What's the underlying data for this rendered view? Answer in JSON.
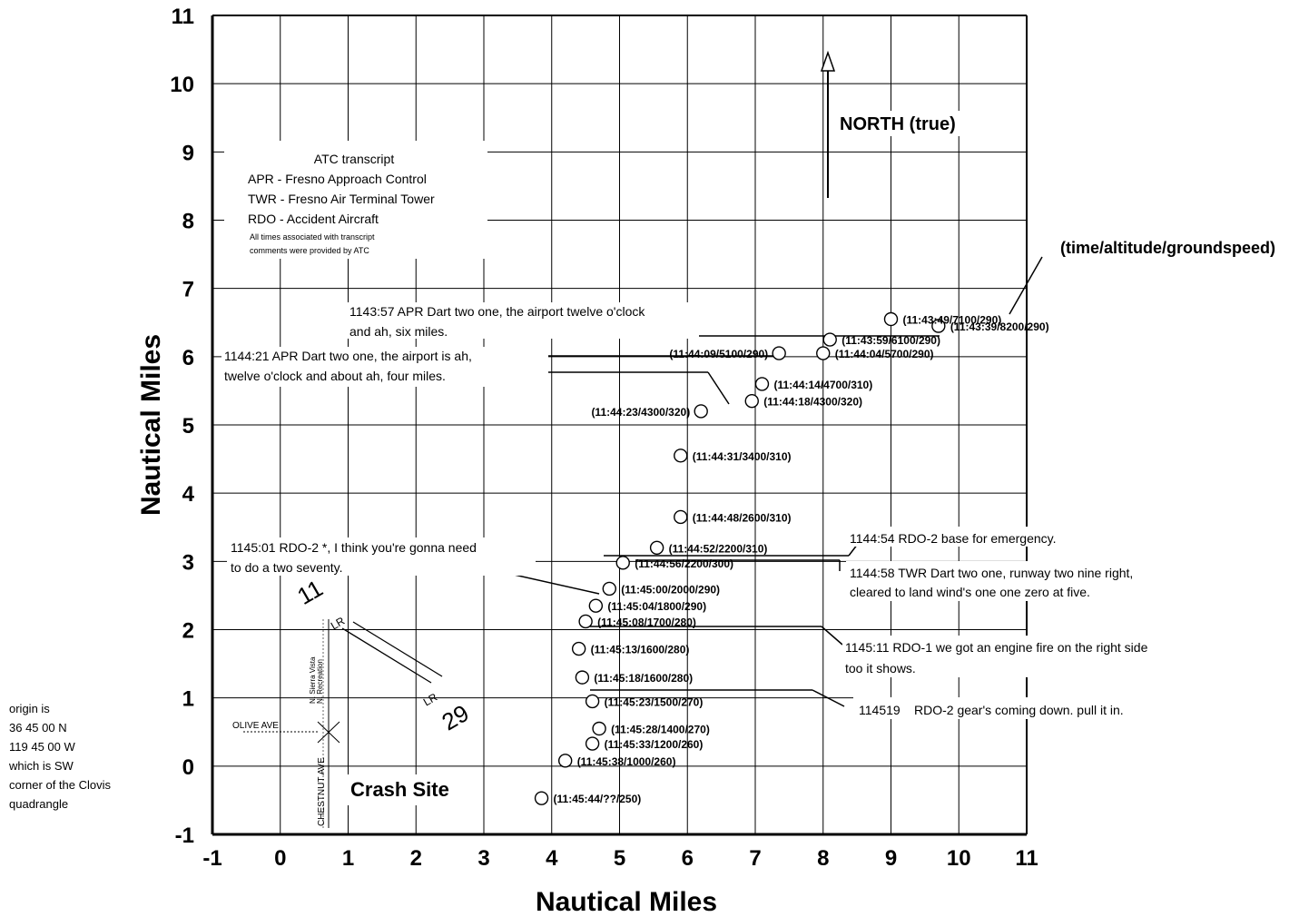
{
  "chart_data": {
    "type": "scatter",
    "title": "",
    "xlabel": "Nautical Miles",
    "ylabel": "Nautical Miles",
    "xlim": [
      -1,
      11
    ],
    "ylim": [
      -1,
      11
    ],
    "x_ticks": [
      "-1",
      "0",
      "1",
      "2",
      "3",
      "4",
      "5",
      "6",
      "7",
      "8",
      "9",
      "10",
      "11"
    ],
    "y_ticks": [
      "-1",
      "0",
      "1",
      "2",
      "3",
      "4",
      "5",
      "6",
      "7",
      "8",
      "9",
      "10",
      "11"
    ],
    "grid": true,
    "series_format": "(time/altitude/groundspeed)",
    "points": [
      {
        "x": 9.7,
        "y": 6.45,
        "label": "(11:43:39/8200/290)"
      },
      {
        "x": 9.0,
        "y": 6.55,
        "label": "(11:43:49/7100/290)"
      },
      {
        "x": 8.1,
        "y": 6.25,
        "label": "(11:43:59/6100/290)"
      },
      {
        "x": 8.0,
        "y": 6.05,
        "label": "(11:44:04/5700/290)"
      },
      {
        "x": 7.35,
        "y": 6.05,
        "label": "(11:44:09/5100/290)"
      },
      {
        "x": 7.1,
        "y": 5.6,
        "label": "(11:44:14/4700/310)"
      },
      {
        "x": 6.95,
        "y": 5.35,
        "label": "(11:44:18/4300/320)"
      },
      {
        "x": 6.2,
        "y": 5.2,
        "label": "(11:44:23/4300/320)"
      },
      {
        "x": 5.9,
        "y": 4.55,
        "label": "(11:44:31/3400/310)"
      },
      {
        "x": 5.9,
        "y": 3.65,
        "label": "(11:44:48/2600/310)"
      },
      {
        "x": 5.55,
        "y": 3.2,
        "label": "(11:44:52/2200/310)"
      },
      {
        "x": 5.05,
        "y": 2.98,
        "label": "(11:44:56/2200/300)"
      },
      {
        "x": 4.85,
        "y": 2.6,
        "label": "(11:45:00/2000/290)"
      },
      {
        "x": 4.65,
        "y": 2.35,
        "label": "(11:45:04/1800/290)"
      },
      {
        "x": 4.5,
        "y": 2.12,
        "label": "(11:45:08/1700/280)"
      },
      {
        "x": 4.4,
        "y": 1.72,
        "label": "(11:45:13/1600/280)"
      },
      {
        "x": 4.45,
        "y": 1.3,
        "label": "(11:45:18/1600/280)"
      },
      {
        "x": 4.6,
        "y": 0.95,
        "label": "(11:45:23/1500/270)"
      },
      {
        "x": 4.7,
        "y": 0.55,
        "label": "(11:45:28/1400/270)"
      },
      {
        "x": 4.6,
        "y": 0.33,
        "label": "(11:45:33/1200/260)"
      },
      {
        "x": 4.2,
        "y": 0.08,
        "label": "(11:45:38/1000/260)"
      },
      {
        "x": 3.85,
        "y": -0.47,
        "label": "(11:45:44/??/250)"
      }
    ]
  },
  "legend": {
    "heading": "ATC transcript",
    "lines": [
      "APR - Fresno Approach Control",
      "TWR - Fresno Air Terminal Tower",
      "RDO - Accident Aircraft"
    ],
    "note1": "All times associated with transcript",
    "note2": "comments were provided by ATC"
  },
  "north_label": "NORTH (true)",
  "crash_site": "Crash Site",
  "runway": {
    "end_a": "11",
    "end_b": "29",
    "lr_a": "LR",
    "lr_b": "LR"
  },
  "roads": {
    "olive": "OLIVE AVE",
    "chestnut": "CHESTNUT AVE",
    "sierra_vista": "N. Sierra Vista",
    "sierra_vista_2": "N. Recreation"
  },
  "origin_note": [
    "origin is",
    "36 45 00 N",
    "119 45 00 W",
    "which is SW",
    "corner of the Clovis",
    "quadrangle"
  ],
  "transcript": {
    "c1_l1": "1143:57 APR   Dart two one, the airport twelve o'clock",
    "c1_l2": "and ah, six miles.",
    "c2_l1": "1144:21 APR   Dart two one, the airport is ah,",
    "c2_l2": "twelve o'clock and about ah, four miles.",
    "c3_l1": "1145:01 RDO-2   *, I think you're gonna need",
    "c3_l2": "to do a two seventy.",
    "c4_l1": "1144:54 RDO-2   base for emergency.",
    "c5_l1": "1144:58 TWR   Dart two one, runway two nine right,",
    "c5_l2": "cleared to land wind's one one zero at five.",
    "c6_l1": "1145:11 RDO-1   we got an engine fire on the right side",
    "c6_l2": "too it shows.",
    "c7_a": "114519",
    "c7_b": "RDO-2   gear's coming down. pull it in."
  }
}
